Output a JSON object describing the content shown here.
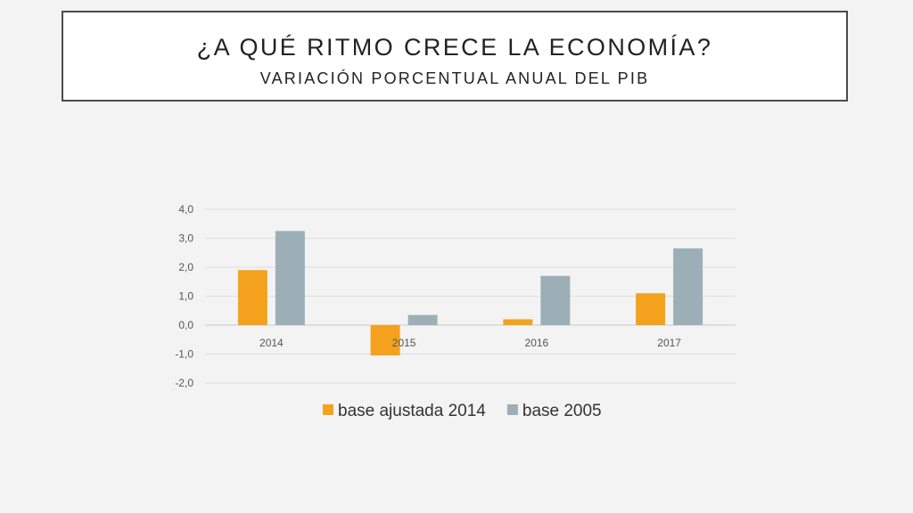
{
  "header": {
    "title": "¿A QUÉ RITMO CRECE LA ECONOMÍA?",
    "subtitle": "VARIACIÓN PORCENTUAL ANUAL DEL PIB"
  },
  "chart_data": {
    "type": "bar",
    "categories": [
      "2014",
      "2015",
      "2016",
      "2017"
    ],
    "series": [
      {
        "name": "base ajustada 2014",
        "values": [
          1.9,
          -1.05,
          0.2,
          1.1
        ],
        "color": "#f4a21d"
      },
      {
        "name": "base 2005",
        "values": [
          3.25,
          0.35,
          1.7,
          2.65
        ],
        "color": "#9dafb6"
      }
    ],
    "ylim": [
      -2.0,
      4.0
    ],
    "yticks": [
      "4,0",
      "3,0",
      "2,0",
      "1,0",
      "0,0",
      "-1,0",
      "-2,0"
    ],
    "ytick_values": [
      4,
      3,
      2,
      1,
      0,
      -1,
      -2
    ],
    "grid": true,
    "legend_position": "bottom"
  }
}
